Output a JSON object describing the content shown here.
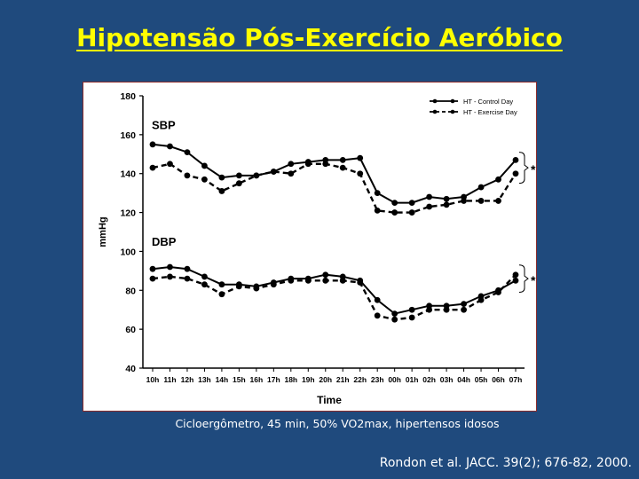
{
  "slide": {
    "title": "Hipotensão Pós-Exercício Aeróbico",
    "caption": "Cicloergômetro, 45 min, 50% VO2max, hipertensos idosos",
    "reference": "Rondon et al. JACC. 39(2); 676-82, 2000."
  },
  "colors": {
    "background": "#1f4a7d",
    "title": "#ffff00",
    "text": "#ffffff",
    "chart_ink": "#000000"
  },
  "chart_data": {
    "type": "line",
    "title": "",
    "xlabel": "Time",
    "ylabel": "mmHg",
    "ylim": [
      40,
      180
    ],
    "yticks": [
      40,
      60,
      80,
      100,
      120,
      140,
      160,
      180
    ],
    "categories": [
      "10h",
      "11h",
      "12h",
      "13h",
      "14h",
      "15h",
      "16h",
      "17h",
      "18h",
      "19h",
      "20h",
      "21h",
      "22h",
      "23h",
      "00h",
      "01h",
      "02h",
      "03h",
      "04h",
      "05h",
      "06h",
      "07h"
    ],
    "legend": {
      "position": "top-right",
      "entries": [
        "HT - Control Day",
        "HT - Exercise Day"
      ]
    },
    "annotations": [
      {
        "text": "SBP",
        "near": "top-left"
      },
      {
        "text": "DBP",
        "near": "middle-left"
      },
      {
        "text": "*",
        "near": "right of SBP end",
        "y": 143
      },
      {
        "text": "*",
        "near": "right of DBP end",
        "y": 87
      }
    ],
    "series": [
      {
        "name": "HT - Control Day",
        "group": "SBP",
        "style": "solid",
        "values": [
          155,
          154,
          151,
          144,
          138,
          139,
          139,
          141,
          145,
          146,
          147,
          147,
          148,
          130,
          125,
          125,
          128,
          127,
          128,
          133,
          137,
          147
        ]
      },
      {
        "name": "HT - Exercise Day",
        "group": "SBP",
        "style": "dashed",
        "values": [
          143,
          145,
          139,
          137,
          131,
          135,
          139,
          141,
          140,
          145,
          145,
          143,
          140,
          121,
          120,
          120,
          123,
          124,
          126,
          126,
          126,
          140
        ]
      },
      {
        "name": "HT - Control Day",
        "group": "DBP",
        "style": "solid",
        "values": [
          91,
          92,
          91,
          87,
          83,
          83,
          82,
          84,
          86,
          86,
          88,
          87,
          85,
          75,
          68,
          70,
          72,
          72,
          73,
          77,
          80,
          85
        ]
      },
      {
        "name": "HT - Exercise Day",
        "group": "DBP",
        "style": "dashed",
        "values": [
          86,
          87,
          86,
          83,
          78,
          82,
          81,
          83,
          85,
          85,
          85,
          85,
          84,
          67,
          65,
          66,
          70,
          70,
          70,
          75,
          79,
          88
        ]
      }
    ]
  }
}
